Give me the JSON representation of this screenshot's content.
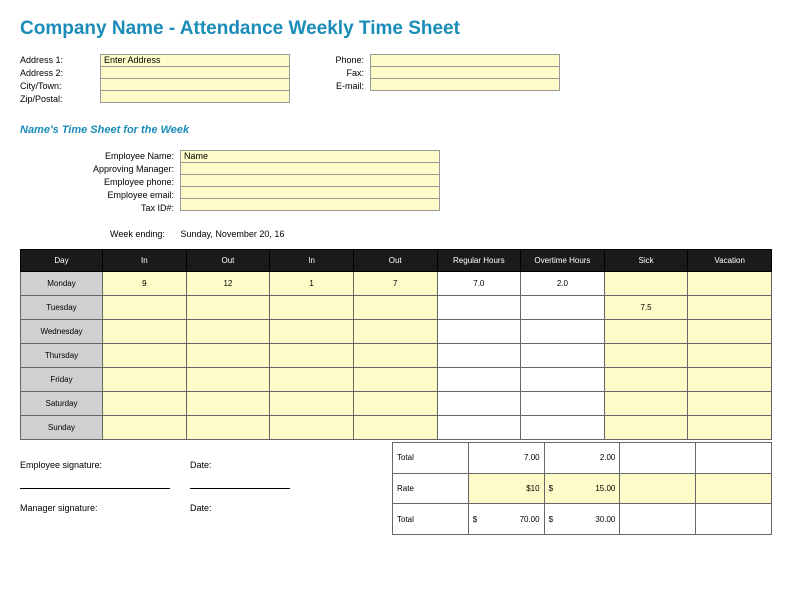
{
  "title": {
    "text": "Company Name - Attendance Weekly Time Sheet",
    "color": "#1a8cb8"
  },
  "company": {
    "labels": {
      "addr1": "Address 1:",
      "addr2": "Address 2:",
      "city": "City/Town:",
      "zip": "Zip/Postal:"
    },
    "fields": {
      "addr1": "Enter Address",
      "addr2": "",
      "city": "",
      "zip": ""
    },
    "contact_labels": {
      "phone": "Phone:",
      "fax": "Fax:",
      "email": "E-mail:"
    },
    "contact_fields": {
      "phone": "",
      "fax": "",
      "email": ""
    }
  },
  "subtitle": {
    "text": "Name's Time Sheet for the Week",
    "color": "#1a8cb8"
  },
  "employee": {
    "labels": {
      "name": "Employee Name:",
      "mgr": "Approving Manager:",
      "phone": "Employee phone:",
      "email": "Employee email:",
      "tax": "Tax ID#:"
    },
    "fields": {
      "name": "Name",
      "mgr": "",
      "phone": "",
      "email": "",
      "tax": ""
    }
  },
  "week_ending": {
    "label": "Week ending:",
    "value": "Sunday, November 20, 16"
  },
  "table": {
    "headers": [
      "Day",
      "In",
      "Out",
      "In",
      "Out",
      "Regular Hours",
      "Overtime Hours",
      "Sick",
      "Vacation"
    ],
    "rows": [
      {
        "day": "Monday",
        "in1": "9",
        "out1": "12",
        "in2": "1",
        "out2": "7",
        "reg": "7.0",
        "ot": "2.0",
        "sick": "",
        "vac": ""
      },
      {
        "day": "Tuesday",
        "in1": "",
        "out1": "",
        "in2": "",
        "out2": "",
        "reg": "",
        "ot": "",
        "sick": "7.5",
        "vac": ""
      },
      {
        "day": "Wednesday",
        "in1": "",
        "out1": "",
        "in2": "",
        "out2": "",
        "reg": "",
        "ot": "",
        "sick": "",
        "vac": ""
      },
      {
        "day": "Thursday",
        "in1": "",
        "out1": "",
        "in2": "",
        "out2": "",
        "reg": "",
        "ot": "",
        "sick": "",
        "vac": ""
      },
      {
        "day": "Friday",
        "in1": "",
        "out1": "",
        "in2": "",
        "out2": "",
        "reg": "",
        "ot": "",
        "sick": "",
        "vac": ""
      },
      {
        "day": "Saturday",
        "in1": "",
        "out1": "",
        "in2": "",
        "out2": "",
        "reg": "",
        "ot": "",
        "sick": "",
        "vac": ""
      },
      {
        "day": "Sunday",
        "in1": "",
        "out1": "",
        "in2": "",
        "out2": "",
        "reg": "",
        "ot": "",
        "sick": "",
        "vac": ""
      }
    ]
  },
  "totals": {
    "total_label": "Total",
    "total_reg": "7.00",
    "total_ot": "2.00",
    "rate_label": "Rate",
    "rate_reg": "$10",
    "rate_ot_prefix": "$",
    "rate_ot": "15.00",
    "grand_label": "Total",
    "grand_reg_prefix": "$",
    "grand_reg": "70.00",
    "grand_ot_prefix": "$",
    "grand_ot": "30.00"
  },
  "signatures": {
    "emp": "Employee signature:",
    "mgr": "Manager signature:",
    "date": "Date:"
  }
}
